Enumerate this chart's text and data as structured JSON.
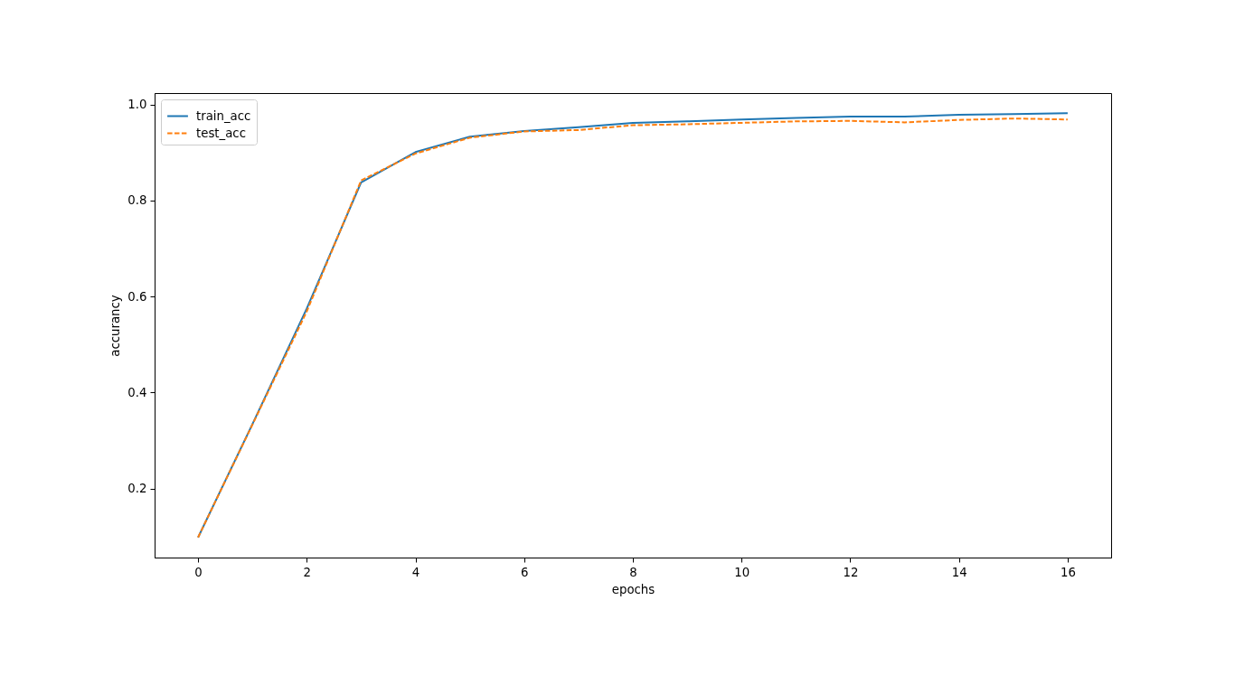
{
  "chart_data": {
    "type": "line",
    "xlabel": "epochs",
    "ylabel": "accurancy",
    "x": [
      0,
      1,
      2,
      3,
      4,
      5,
      6,
      7,
      8,
      9,
      10,
      11,
      12,
      13,
      14,
      15,
      16
    ],
    "series": [
      {
        "name": "train_acc",
        "color": "#1f77b4",
        "line_style": "solid",
        "values": [
          0.098,
          0.334,
          0.575,
          0.838,
          0.901,
          0.933,
          0.945,
          0.953,
          0.962,
          0.965,
          0.969,
          0.972,
          0.975,
          0.975,
          0.979,
          0.98,
          0.982
        ]
      },
      {
        "name": "test_acc",
        "color": "#ff7f0e",
        "line_style": "dashed",
        "values": [
          0.098,
          0.333,
          0.569,
          0.842,
          0.898,
          0.931,
          0.944,
          0.947,
          0.957,
          0.959,
          0.962,
          0.965,
          0.966,
          0.963,
          0.968,
          0.971,
          0.969
        ]
      }
    ],
    "xlim": [
      -0.8,
      16.8
    ],
    "ylim": [
      0.056,
      1.024
    ],
    "xticks": [
      0,
      2,
      4,
      6,
      8,
      10,
      12,
      14,
      16
    ],
    "yticks": [
      0.2,
      0.4,
      0.6,
      0.8,
      {
        "value": 1,
        "label": "1.0"
      }
    ],
    "legend": "top left",
    "grid": false
  }
}
